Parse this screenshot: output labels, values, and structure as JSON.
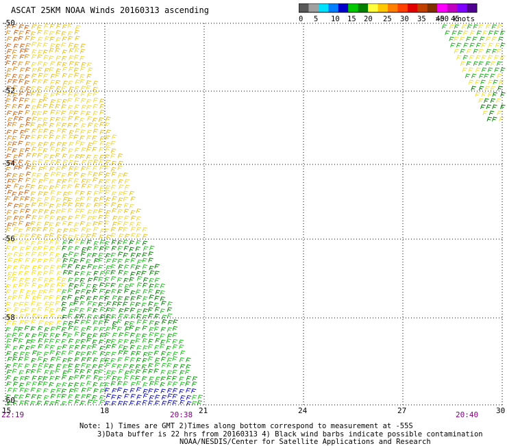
{
  "title": "ASCAT 25KM NOAA Winds 20160313 ascending",
  "colorbar": {
    "colors": [
      "#585858",
      "#a0a0a0",
      "#00e0ff",
      "#0080ff",
      "#0000c8",
      "#00c800",
      "#008000",
      "#ffff40",
      "#ffc800",
      "#ff8000",
      "#ff4000",
      "#e00000",
      "#c04000",
      "#803000",
      "#ff00ff",
      "#c000c0",
      "#8000ff",
      "#500090"
    ],
    "labels": [
      "0",
      "5",
      "10",
      "15",
      "20",
      "25",
      "30",
      "35",
      "40",
      "45",
      ">50 knots"
    ]
  },
  "map": {
    "lon_labels": [
      "15",
      "18",
      "21",
      "24",
      "27",
      "30"
    ],
    "lat_labels": [
      "-50",
      "-52",
      "-54",
      "-56",
      "-58",
      "-60"
    ],
    "times": [
      "22:19",
      "20:38",
      "20:40"
    ]
  },
  "notes": [
    "Note: 1) Times are GMT 2)Times along bottom correspond to measurement at -55S",
    "3)Data buffer is 22 hrs from 20160313 4) Black wind barbs indicate possible contamination",
    "NOAA/NESDIS/Center for Satellite Applications and Research"
  ]
}
